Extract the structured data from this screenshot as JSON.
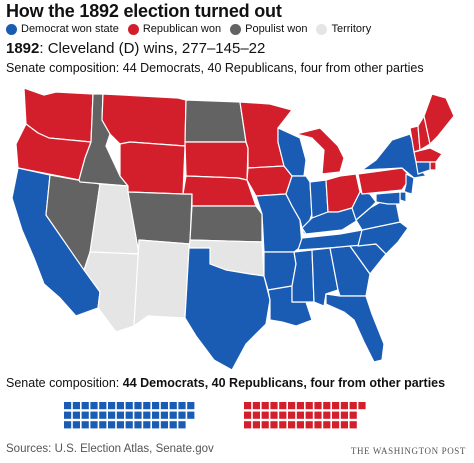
{
  "title": "How the 1892 election turned out",
  "legend": [
    {
      "label": "Democrat won state",
      "color": "#1a5bb3"
    },
    {
      "label": "Republican won",
      "color": "#d21f2b"
    },
    {
      "label": "Populist won",
      "color": "#636363"
    },
    {
      "label": "Territory",
      "color": "#e5e5e5"
    }
  ],
  "headline": {
    "year": "1892",
    "text": ": Cleveland (D) wins, 277–145–22"
  },
  "senate_top": "Senate composition: 44 Democrats, 40 Republicans, four from other parties",
  "senate_bottom": {
    "prefix": "Senate composition: ",
    "bold": "44 Democrats, 40 Republicans, four from other parties"
  },
  "seats": {
    "democrats": 44,
    "republicans": 40,
    "other": 4,
    "dem_color": "#1a5bb3",
    "rep_color": "#d21f2b"
  },
  "source": "Sources: U.S. Election Atlas, Senate.gov",
  "credit": "THE WASHINGTON POST",
  "colors": {
    "dem": "#1a5bb3",
    "rep": "#d21f2b",
    "pop": "#636363",
    "ter": "#e5e5e5",
    "border": "#ffffff"
  }
}
